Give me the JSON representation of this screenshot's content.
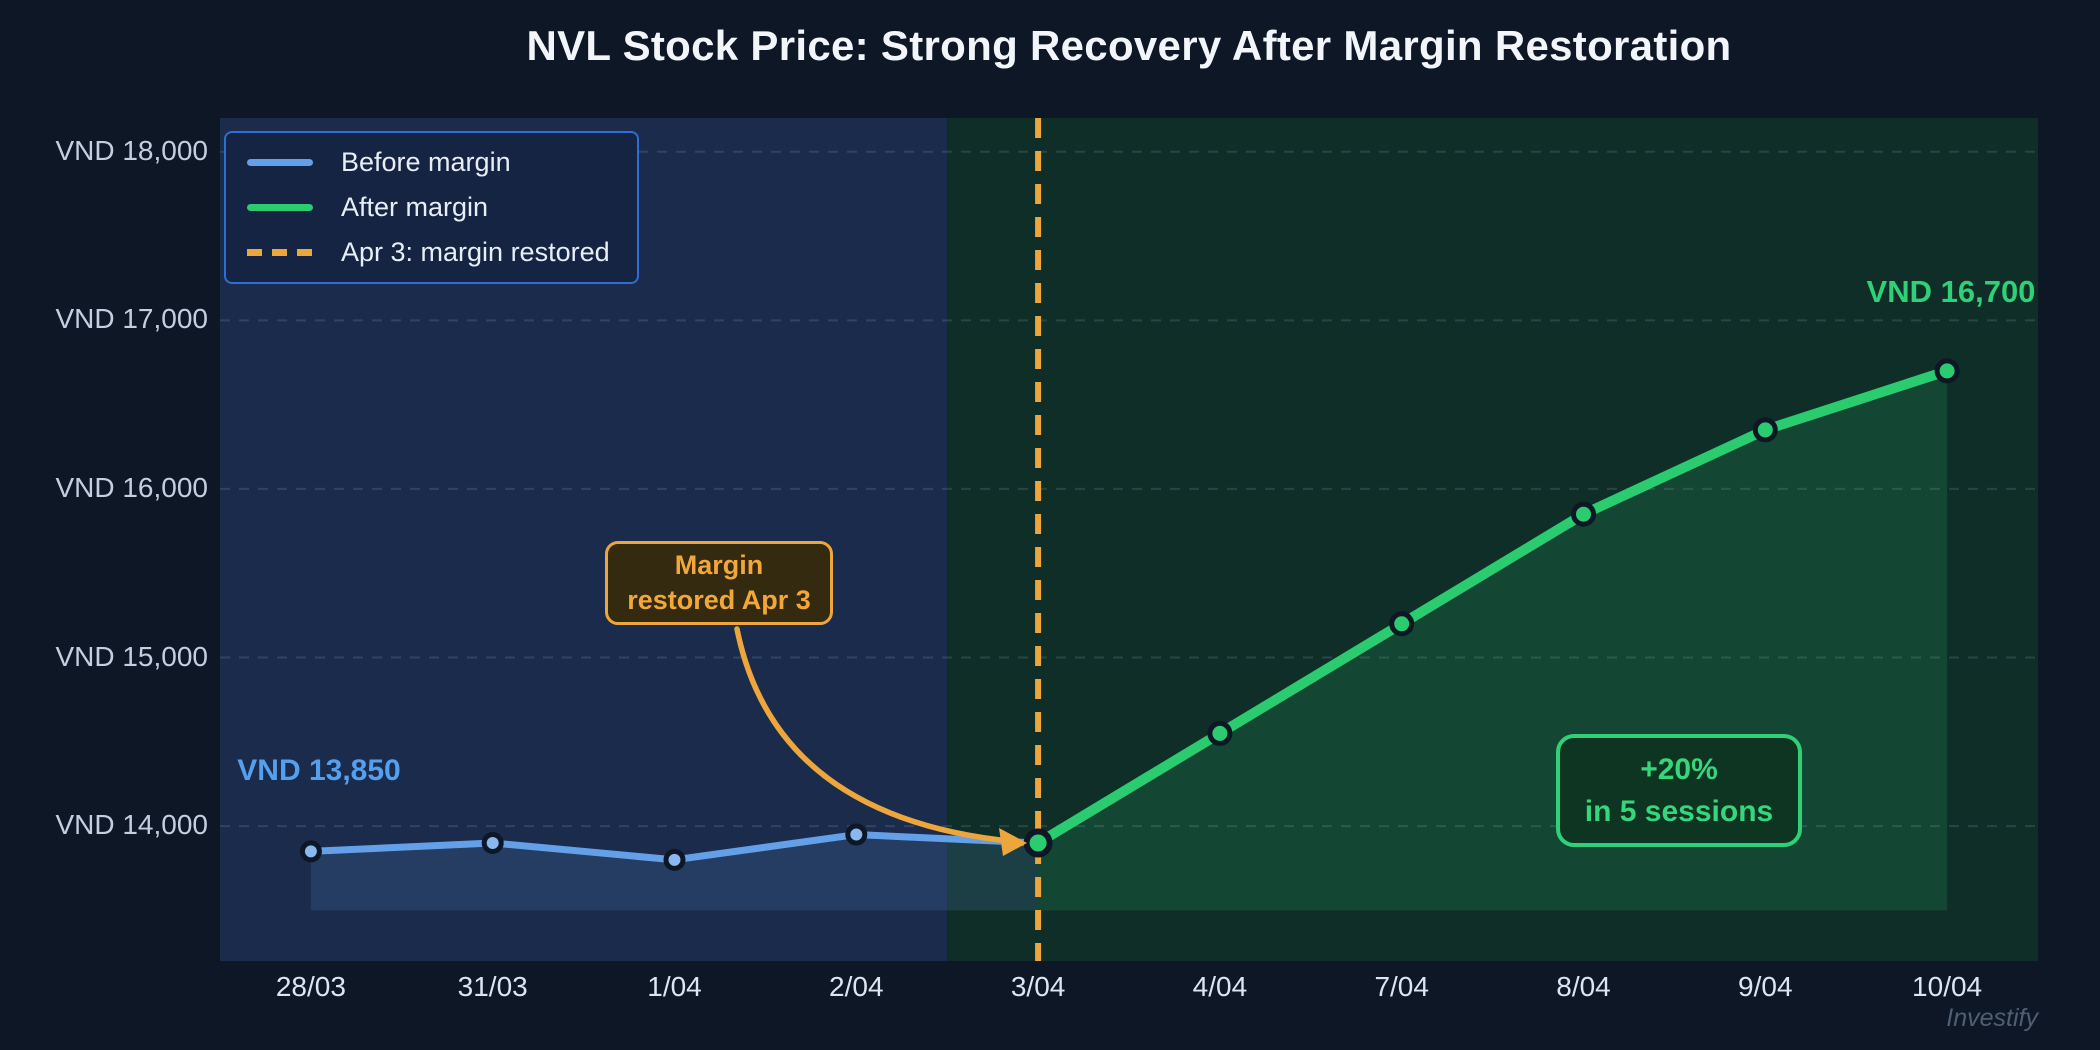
{
  "title": "NVL Stock Price: Strong Recovery After Margin Restoration",
  "watermark": "Investify",
  "colors": {
    "blue": "#63a0e8",
    "green": "#2bcb70",
    "orange": "#eda63c"
  },
  "legend": {
    "items": [
      {
        "label": "Before margin",
        "color": "#63a0e8",
        "style": "solid"
      },
      {
        "label": "After margin",
        "color": "#2bcb70",
        "style": "solid"
      },
      {
        "label": "Apr 3: margin restored",
        "color": "#eda63c",
        "style": "dashed"
      }
    ]
  },
  "annotations": {
    "start_label": "VND 13,850",
    "end_label": "VND 16,700",
    "margin_note_line1": "Margin",
    "margin_note_line2": "restored Apr 3",
    "gain_line1": "+20%",
    "gain_line2": "in 5 sessions"
  },
  "chart_data": {
    "type": "line",
    "title": "NVL Stock Price: Strong Recovery After Margin Restoration",
    "x": [
      "28/03",
      "31/03",
      "1/04",
      "2/04",
      "3/04",
      "4/04",
      "7/04",
      "8/04",
      "9/04",
      "10/04"
    ],
    "series": [
      {
        "name": "Before margin",
        "color": "#63a0e8",
        "marker_color": "#8ab7f0",
        "fill": "rgba(99,160,232,0.15)",
        "line_width": 7,
        "marker_r": 8.5,
        "start_index": 0,
        "values": [
          13850,
          13900,
          13800,
          13950,
          13900
        ]
      },
      {
        "name": "After margin",
        "color": "#2bcb70",
        "marker_color": "#2bcb70",
        "fill": "rgba(46,204,113,0.16)",
        "line_width": 10,
        "marker_r": 10,
        "start_index": 4,
        "values": [
          13900,
          14550,
          15200,
          15850,
          16350,
          16700
        ]
      }
    ],
    "y_ticks": [
      {
        "label": "VND 18,000",
        "value": 18000
      },
      {
        "label": "VND 17,000",
        "value": 17000
      },
      {
        "label": "VND 16,000",
        "value": 16000
      },
      {
        "label": "VND 15,000",
        "value": 15000
      },
      {
        "label": "VND 14,000",
        "value": 14000
      }
    ],
    "ylim": [
      13200,
      18200
    ],
    "fill_base_value": 13500,
    "grid": "horizontal-dashed",
    "legend_position": "top-left",
    "vline": {
      "at_index": 4,
      "color": "#eda63c",
      "label": "Apr 3: margin restored"
    },
    "regions": [
      {
        "name": "before",
        "from_edge": 0,
        "to_edge": 4,
        "color": "#1b2b4c"
      },
      {
        "name": "after",
        "from_edge": 4,
        "to_edge": 10,
        "color": "#102e28"
      }
    ],
    "gain_annotation": "+20% in 5 sessions",
    "event_annotation": "Margin restored Apr 3"
  }
}
